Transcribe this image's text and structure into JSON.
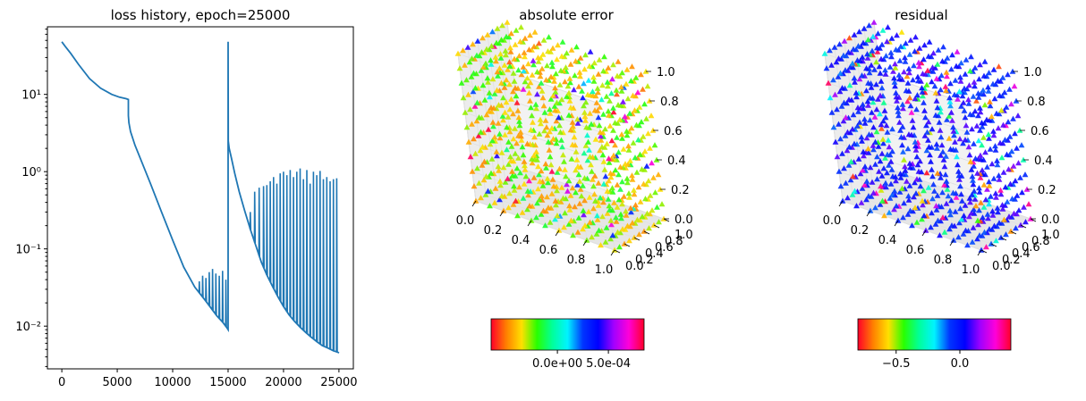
{
  "chart_data": [
    {
      "type": "line",
      "title": "loss history, epoch=25000",
      "xlabel": "",
      "ylabel": "",
      "yscale": "log",
      "xlim": [
        -1300,
        26300
      ],
      "ylim": [
        0.0028,
        75
      ],
      "xticks": [
        0,
        5000,
        10000,
        15000,
        20000,
        25000
      ],
      "xtick_labels": [
        "0",
        "5000",
        "10000",
        "15000",
        "20000",
        "25000"
      ],
      "yticks": [
        0.01,
        0.1,
        1,
        10
      ],
      "ytick_labels": [
        "10⁻²",
        "10⁻¹",
        "10⁰",
        "10¹"
      ],
      "color": "#1f77b4",
      "series": [
        {
          "x": [
            0,
            300,
            800,
            1500,
            2500,
            3500,
            4500,
            5200,
            5800,
            6000,
            6001,
            6050,
            6200,
            6600,
            7200,
            8000,
            9000,
            10000,
            11000,
            12000,
            13000,
            14000,
            14500,
            14900,
            15000,
            15001,
            15020,
            15100,
            15300,
            15600,
            16000,
            16500,
            17000,
            17500,
            18000,
            18500,
            19000,
            19500,
            20000,
            20500,
            21000,
            21500,
            22000,
            22500,
            23000,
            23500,
            24000,
            24500,
            24900,
            25000
          ],
          "y": [
            48,
            42,
            34,
            24.5,
            16,
            12,
            10,
            9.2,
            8.8,
            8.6,
            5.3,
            4.3,
            3.3,
            2.2,
            1.35,
            0.7,
            0.3,
            0.13,
            0.058,
            0.032,
            0.021,
            0.0135,
            0.0113,
            0.0095,
            0.009,
            48,
            2.5,
            2.0,
            1.5,
            0.95,
            0.55,
            0.31,
            0.18,
            0.11,
            0.067,
            0.046,
            0.033,
            0.024,
            0.018,
            0.014,
            0.0115,
            0.0097,
            0.0083,
            0.0072,
            0.0063,
            0.0056,
            0.0052,
            0.0048,
            0.0046,
            0.0045
          ]
        }
      ],
      "spikes": {
        "x": [
          12400,
          12700,
          13000,
          13300,
          13600,
          13900,
          14200,
          14500,
          14800,
          17000,
          17400,
          17800,
          18200,
          18500,
          18800,
          19100,
          19400,
          19700,
          20000,
          20300,
          20600,
          20900,
          21200,
          21500,
          21800,
          22100,
          22400,
          22700,
          23000,
          23300,
          23600,
          23900,
          24200,
          24500,
          24800
        ],
        "peak": [
          0.038,
          0.045,
          0.042,
          0.05,
          0.055,
          0.048,
          0.045,
          0.052,
          0.04,
          0.3,
          0.55,
          0.62,
          0.65,
          0.67,
          0.75,
          0.85,
          0.7,
          0.95,
          1.0,
          0.9,
          1.05,
          0.85,
          1.0,
          1.1,
          0.8,
          1.05,
          0.7,
          1.0,
          0.9,
          1.02,
          0.8,
          0.85,
          0.75,
          0.8,
          0.82
        ]
      }
    },
    {
      "type": "scatter3d",
      "title": "absolute error",
      "marker": "triangle",
      "grid_points_per_axis": 11,
      "axes": {
        "x_ticks": [
          "0.0",
          "0.2",
          "0.4",
          "0.6",
          "0.8",
          "1.0"
        ],
        "y_ticks": [
          "0.0",
          "0.2",
          "0.4",
          "0.6",
          "0.8",
          "1.0"
        ],
        "z_ticks": [
          "0.0",
          "0.2",
          "0.4",
          "0.6",
          "0.8",
          "1.0"
        ],
        "xlim": [
          0,
          1
        ],
        "ylim": [
          0,
          1
        ],
        "zlim": [
          0,
          1
        ]
      },
      "value_range": [
        -0.00065,
        0.00085
      ],
      "dominant_value": -0.0003,
      "colormap": "gist_rainbow",
      "colorbar": {
        "ticks": [
          0,
          0.0005
        ],
        "tick_labels": [
          "0.0e+00",
          "5.0e-04"
        ]
      }
    },
    {
      "type": "scatter3d",
      "title": "residual",
      "marker": "triangle",
      "grid_points_per_axis": 11,
      "axes": {
        "x_ticks": [
          "0.0",
          "0.2",
          "0.4",
          "0.6",
          "0.8",
          "1.0"
        ],
        "y_ticks": [
          "0.0",
          "0.2",
          "0.4",
          "0.6",
          "0.8",
          "1.0"
        ],
        "z_ticks": [
          "0.0",
          "0.2",
          "0.4",
          "0.6",
          "0.8",
          "1.0"
        ],
        "xlim": [
          0,
          1
        ],
        "ylim": [
          0,
          1
        ],
        "zlim": [
          0,
          1
        ]
      },
      "value_range": [
        -0.8,
        0.4
      ],
      "dominant_value": 0.05,
      "colormap": "gist_rainbow",
      "colorbar": {
        "ticks": [
          -0.5,
          0.0
        ],
        "tick_labels": [
          "−0.5",
          "0.0"
        ]
      }
    }
  ],
  "colors": {
    "line": "#1f77b4",
    "pane": "#f2f2f2",
    "grid": "#e0e0e0",
    "colormap_stops": [
      "#ff0029",
      "#ff8000",
      "#ffe000",
      "#29ff00",
      "#00ff9a",
      "#00f3ff",
      "#0035ff",
      "#0000ff",
      "#a000ff",
      "#ff00d8",
      "#ff0029"
    ]
  }
}
